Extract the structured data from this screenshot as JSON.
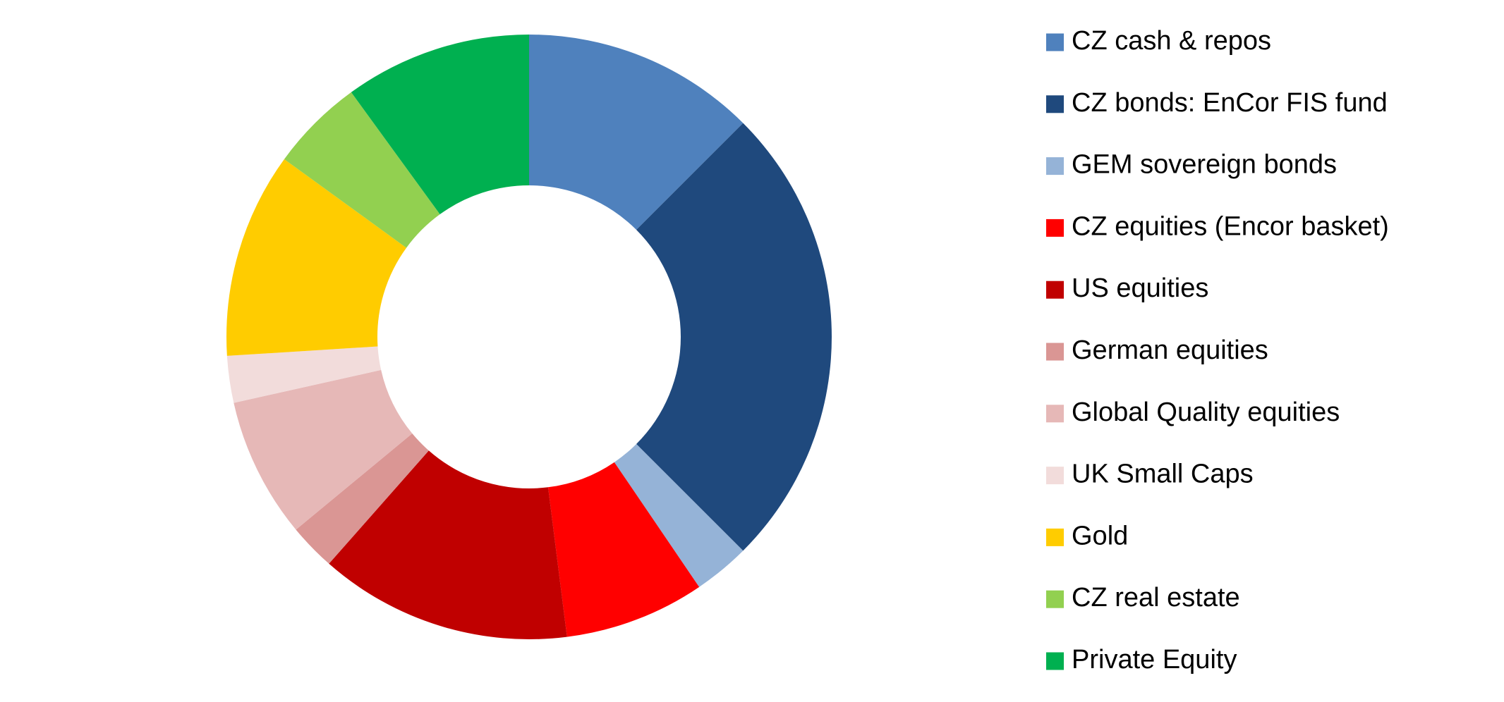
{
  "chart_data": {
    "type": "donut",
    "categories": [
      "CZ cash & repos",
      "CZ bonds: EnCor FIS fund",
      "GEM sovereign bonds",
      "CZ equities (Encor basket)",
      "US equities",
      "German equities",
      "Global Quality equities",
      "UK Small Caps",
      "Gold",
      "CZ real estate",
      "Private Equity"
    ],
    "values": [
      12.5,
      25,
      3,
      7.5,
      13.5,
      2.5,
      7.5,
      2.5,
      11,
      5,
      10
    ],
    "colors": [
      "#4f81bd",
      "#1f497d",
      "#95b3d7",
      "#ff0000",
      "#c00000",
      "#da9694",
      "#e6b8b7",
      "#f2dcdb",
      "#ffcc00",
      "#92d050",
      "#00b050"
    ],
    "legend": "right"
  }
}
